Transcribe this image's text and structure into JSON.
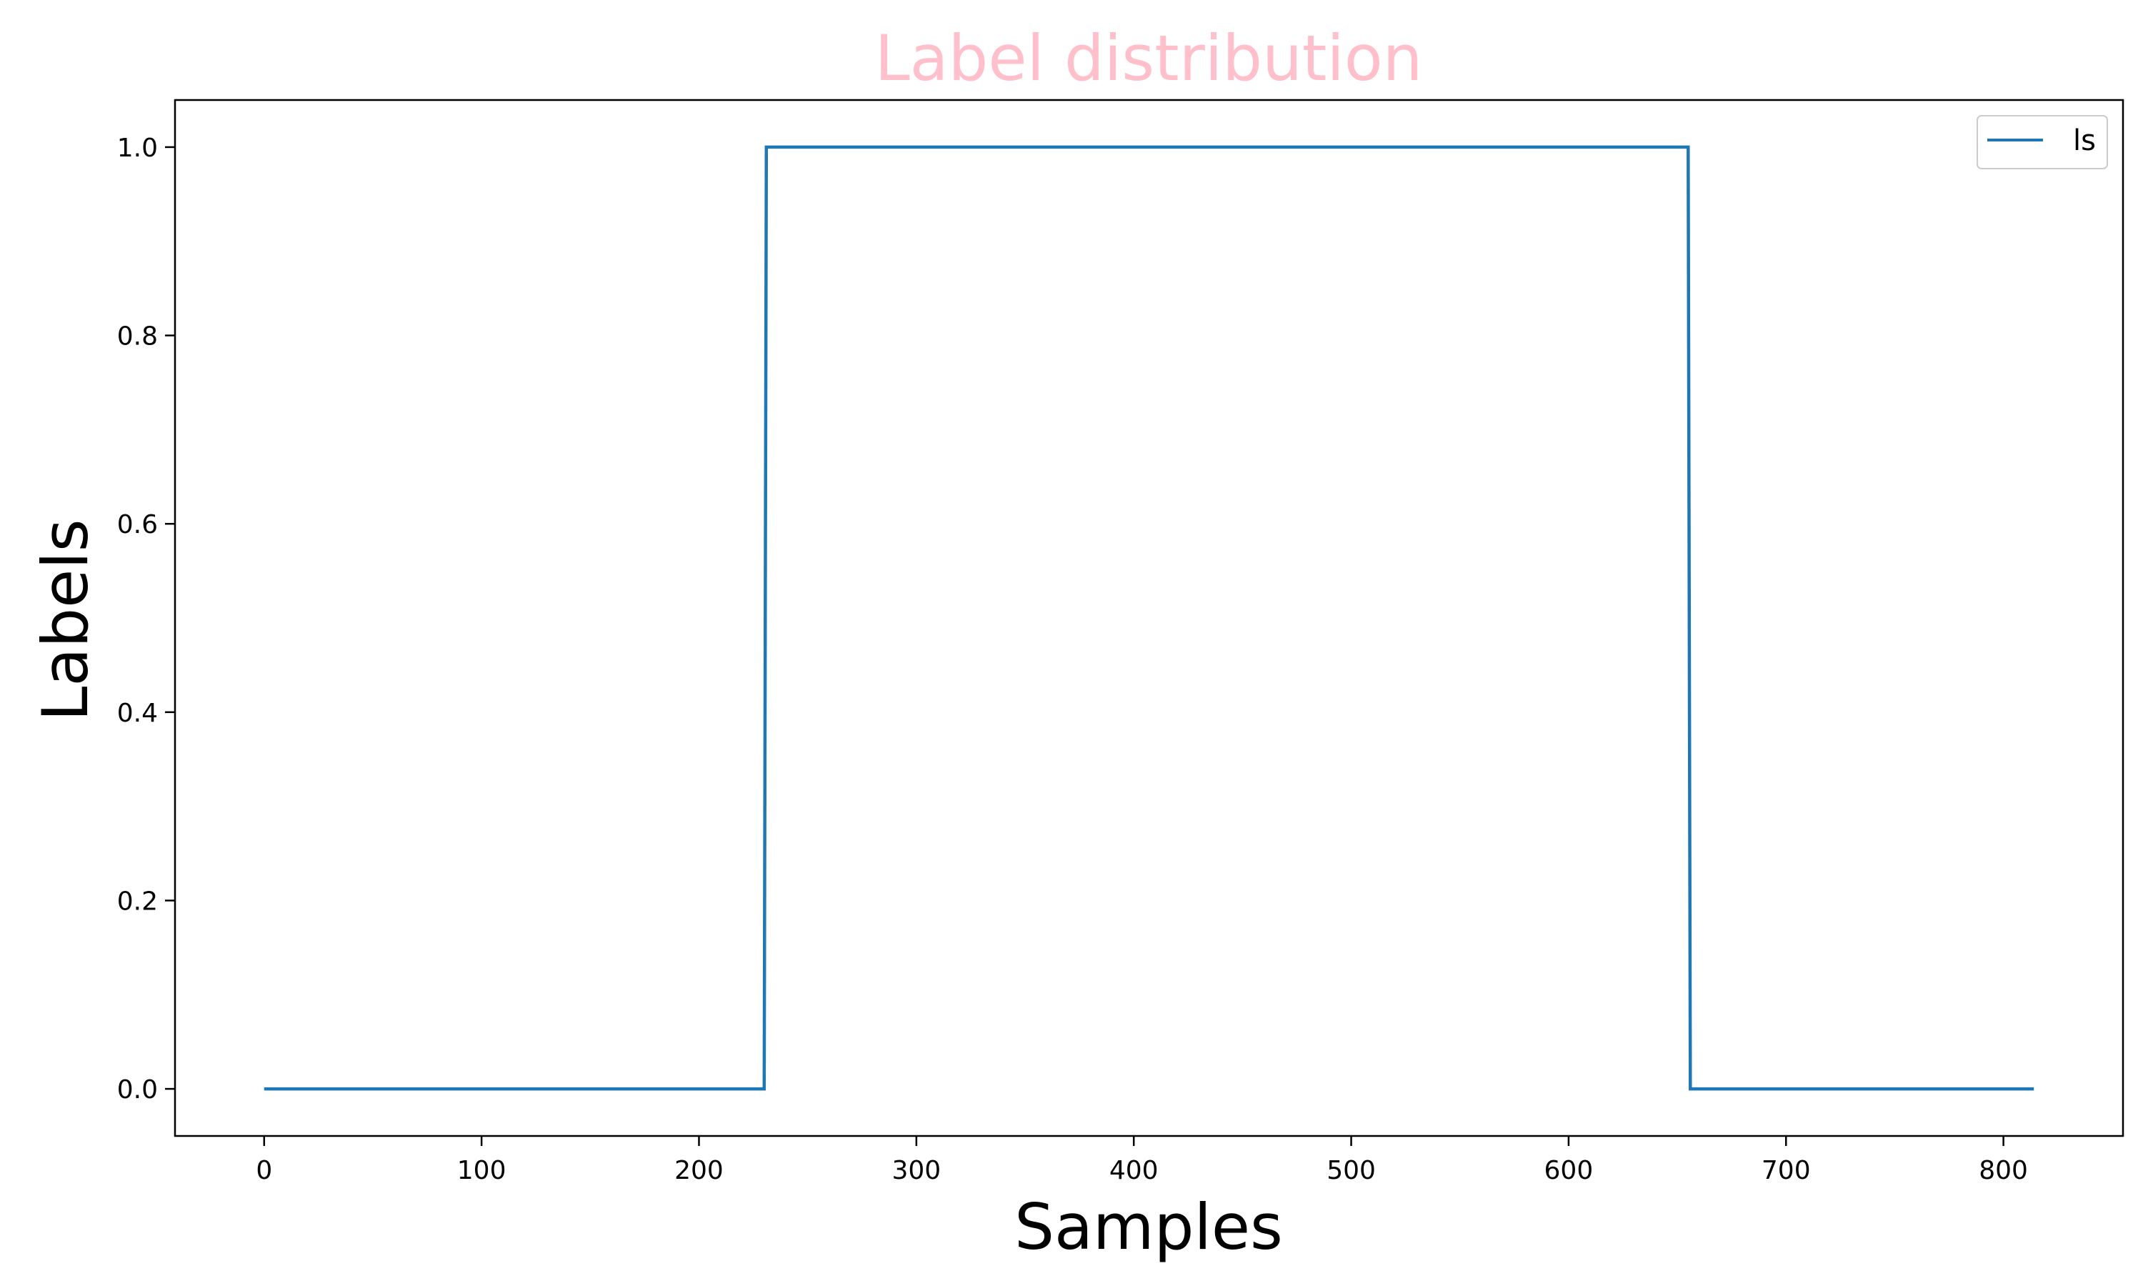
{
  "chart_data": {
    "type": "line",
    "title": "Label distribution",
    "xlabel": "Samples",
    "ylabel": "Labels",
    "xlim": [
      -41,
      855
    ],
    "ylim": [
      -0.05,
      1.05
    ],
    "xticks": [
      0,
      100,
      200,
      300,
      400,
      500,
      600,
      700,
      800
    ],
    "yticks": [
      0.0,
      0.2,
      0.4,
      0.6,
      0.8,
      1.0
    ],
    "xtick_labels": [
      "0",
      "100",
      "200",
      "300",
      "400",
      "500",
      "600",
      "700",
      "800"
    ],
    "ytick_labels": [
      "0.0",
      "0.2",
      "0.4",
      "0.6",
      "0.8",
      "1.0"
    ],
    "grid": false,
    "legend_position": "top-right",
    "series": [
      {
        "name": "ls",
        "color": "#1f77b4",
        "x": [
          0,
          230,
          231,
          655,
          656,
          814
        ],
        "y": [
          0,
          0,
          1,
          1,
          0,
          0
        ]
      }
    ]
  },
  "colors": {
    "title": "#ffc0cb",
    "line": "#1f77b4"
  }
}
